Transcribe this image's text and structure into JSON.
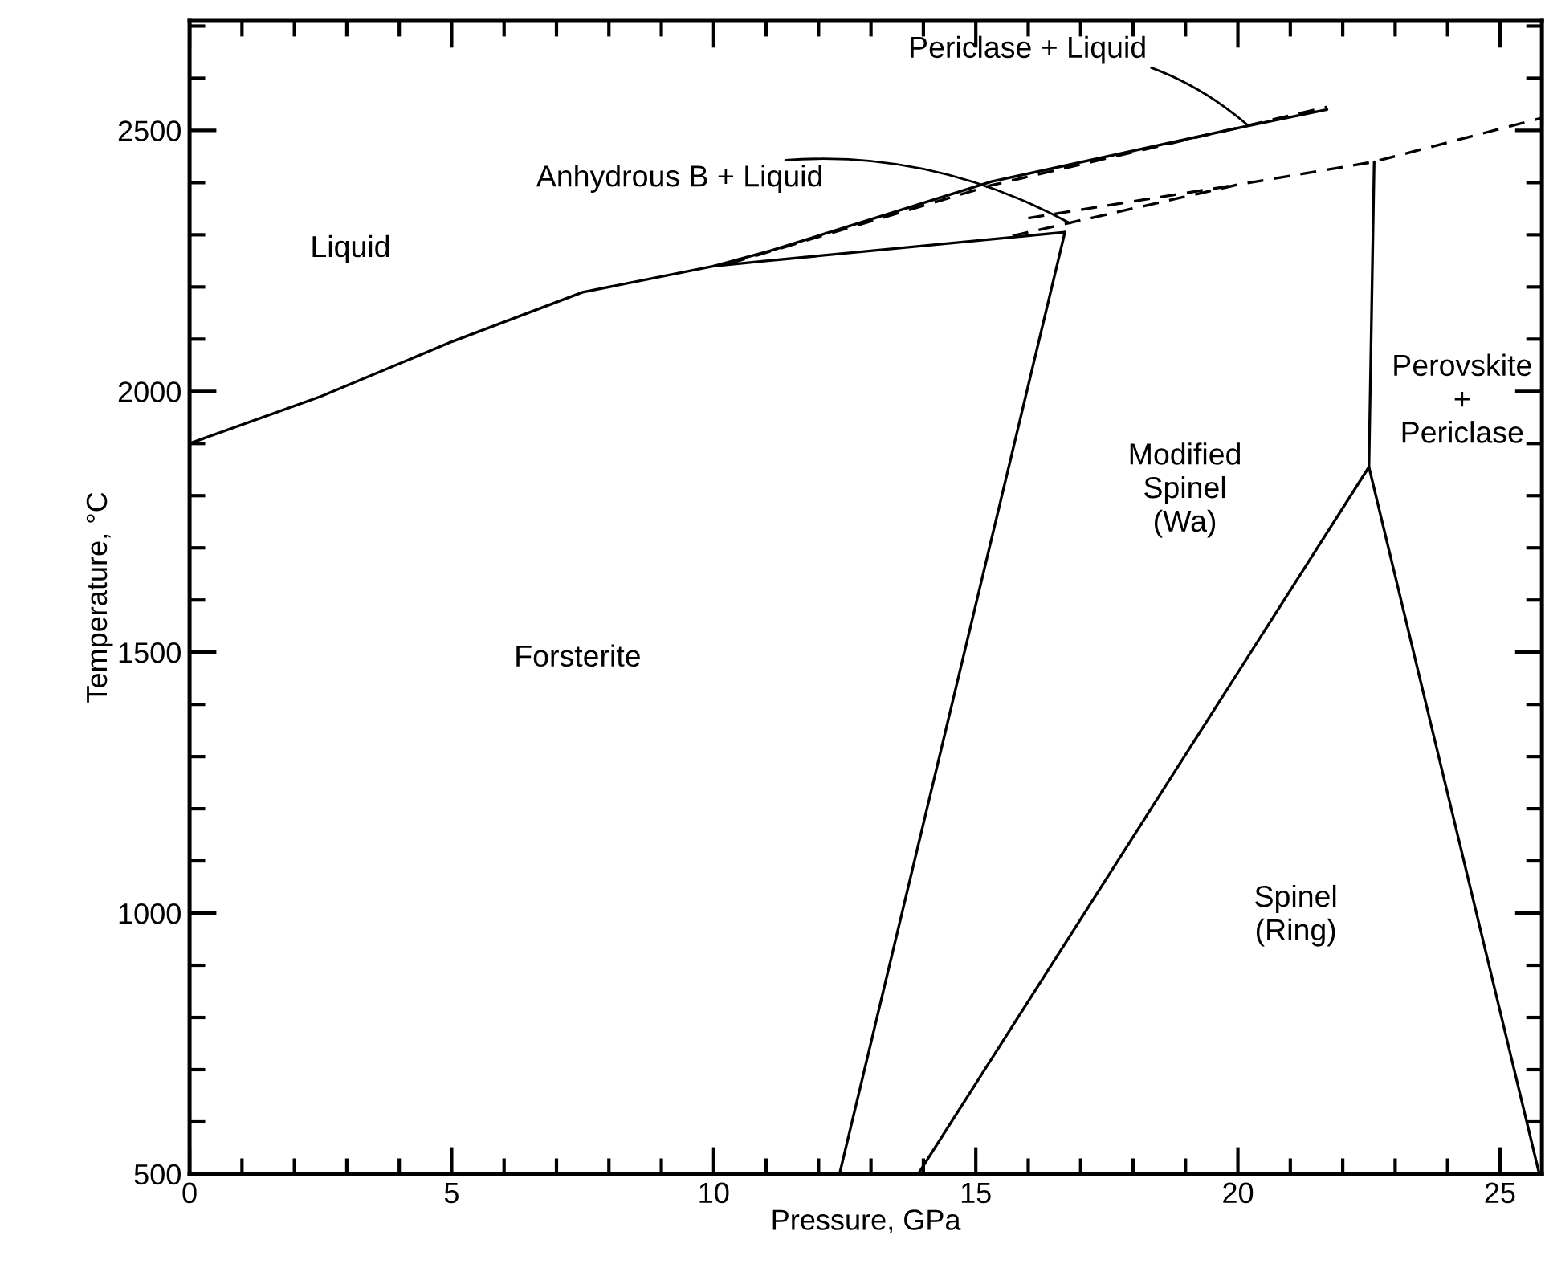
{
  "chart_data": {
    "type": "line",
    "xlabel": "Pressure, GPa",
    "ylabel": "Temperature, °C",
    "xlim": [
      0,
      25.8
    ],
    "ylim": [
      500,
      2710
    ],
    "xticks": [
      0,
      5,
      10,
      15,
      20,
      25
    ],
    "yticks": [
      500,
      1000,
      1500,
      2000,
      2500
    ],
    "grid": false,
    "marker": "none",
    "series": [
      {
        "color": "#000000",
        "line_style": "solid",
        "x": [
          0,
          2.5,
          5,
          7.5,
          10,
          11,
          16.7
        ],
        "values": [
          1900,
          1990,
          2095,
          2190,
          2240,
          2250,
          2305
        ]
      },
      {
        "color": "#000000",
        "line_style": "solid",
        "x": [
          16.7,
          12.4
        ],
        "values": [
          2305,
          500
        ]
      },
      {
        "color": "#000000",
        "line_style": "solid",
        "x": [
          22.5,
          13.9
        ],
        "values": [
          1855,
          500
        ]
      },
      {
        "color": "#000000",
        "line_style": "solid",
        "x": [
          22.6,
          22.5,
          25.75
        ],
        "values": [
          2440,
          1855,
          500
        ]
      },
      {
        "color": "#000000",
        "line_style": "dashed",
        "x": [
          15.7,
          20.0,
          22.6,
          25.8
        ],
        "values": [
          2298,
          2396,
          2440,
          2524
        ]
      },
      {
        "color": "#000000",
        "line_style": "dashed",
        "x": [
          16.0,
          20.0
        ],
        "values": [
          2332,
          2396
        ]
      },
      {
        "color": "#000000",
        "line_style": "solid",
        "x": [
          10,
          11.1,
          15.3,
          20.2,
          21.7
        ],
        "values": [
          2240,
          2270,
          2402,
          2509,
          2540
        ]
      },
      {
        "color": "#000000",
        "line_style": "dashed",
        "x": [
          10.3,
          15.3,
          21.7
        ],
        "values": [
          2245,
          2395,
          2545
        ]
      }
    ],
    "annotations": [
      {
        "text": "Periclase + Liquid",
        "x": 20.2,
        "y": 2509
      },
      {
        "text": "Anhydrous B + Liquid",
        "x": 16.8,
        "y": 2322
      },
      "Liquid",
      "Forsterite",
      "Modified\nSpinel\n(Wa)",
      "Spinel\n(Ring)",
      "Perovskite\n+\nPericlase"
    ]
  }
}
